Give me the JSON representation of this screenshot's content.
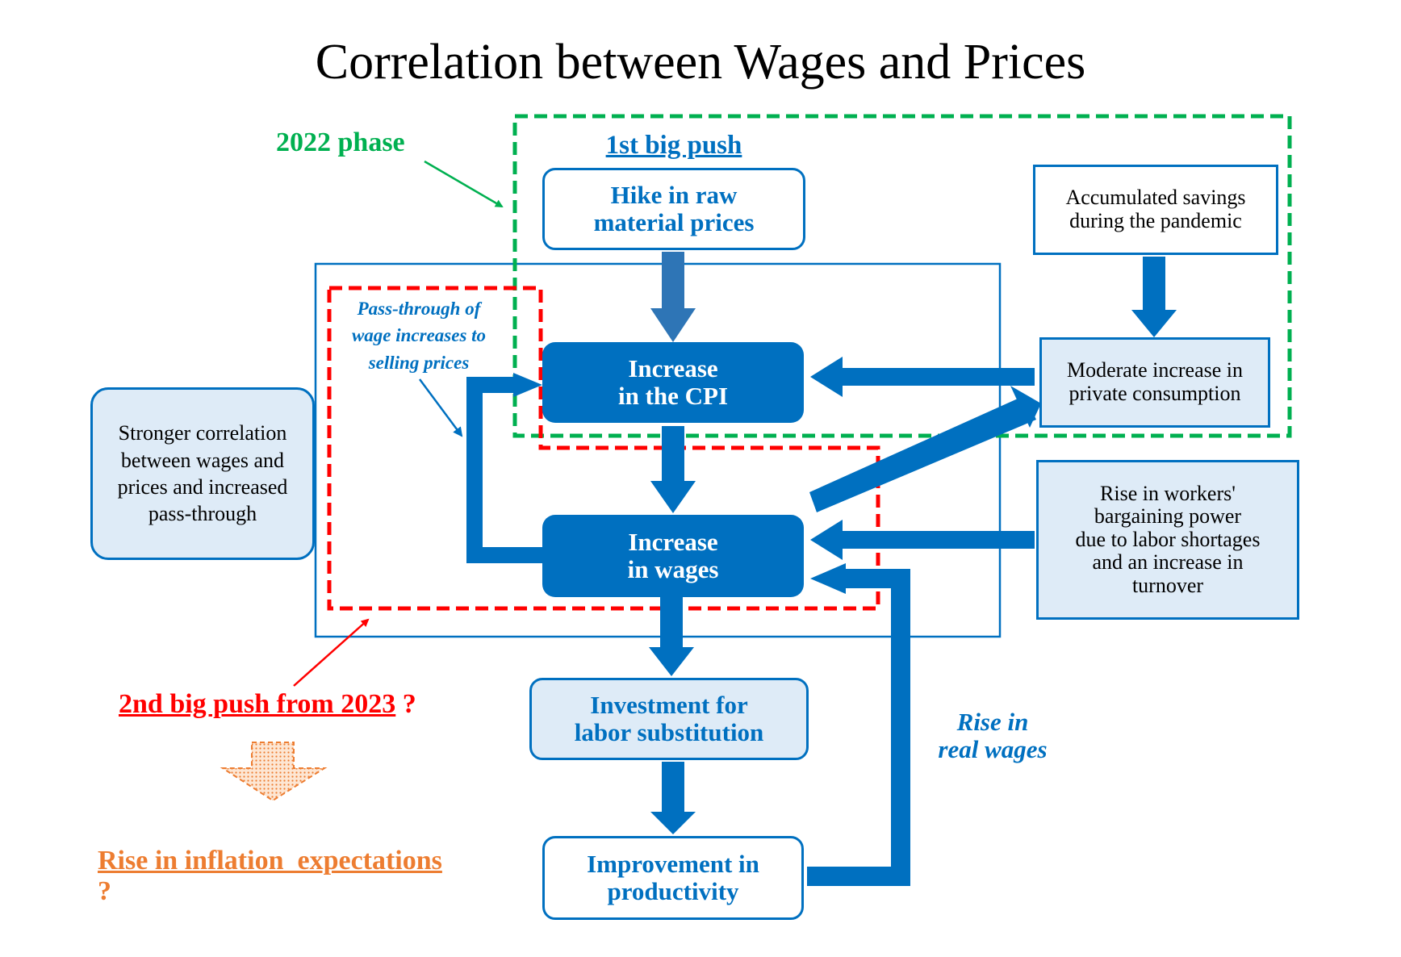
{
  "title": "Correlation between Wages and Prices",
  "phase_label": "2022 phase",
  "first_push": "1st big push",
  "boxes": {
    "raw_material": [
      "Hike in raw",
      "material prices"
    ],
    "cpi": [
      "Increase",
      "in the CPI"
    ],
    "wages": [
      "Increase",
      "in wages"
    ],
    "investment": [
      "Investment for",
      "labor substitution"
    ],
    "productivity": [
      "Improvement in",
      "productivity"
    ],
    "savings": [
      "Accumulated savings",
      "during the pandemic"
    ],
    "consumption": [
      "Moderate increase in",
      "private consumption"
    ],
    "bargaining": [
      "Rise in workers'",
      "bargaining power",
      "due to labor shortages",
      "and an increase in",
      "turnover"
    ],
    "correlation": [
      "Stronger correlation",
      "between wages and",
      "prices and increased",
      "pass-through"
    ]
  },
  "pass_through": [
    "Pass-through of",
    "wage increases to",
    "selling prices"
  ],
  "real_wages": [
    "Rise in",
    "real wages"
  ],
  "second_push": "2nd big push from 2023",
  "second_push_q": "?",
  "inflation": "Rise in inflation  expectations",
  "inflation_q": "?",
  "colors": {
    "blue": "#0070C0",
    "green": "#00B050",
    "red": "#FF0000",
    "orange": "#ED7D31",
    "pale": "#DEEBF7"
  }
}
